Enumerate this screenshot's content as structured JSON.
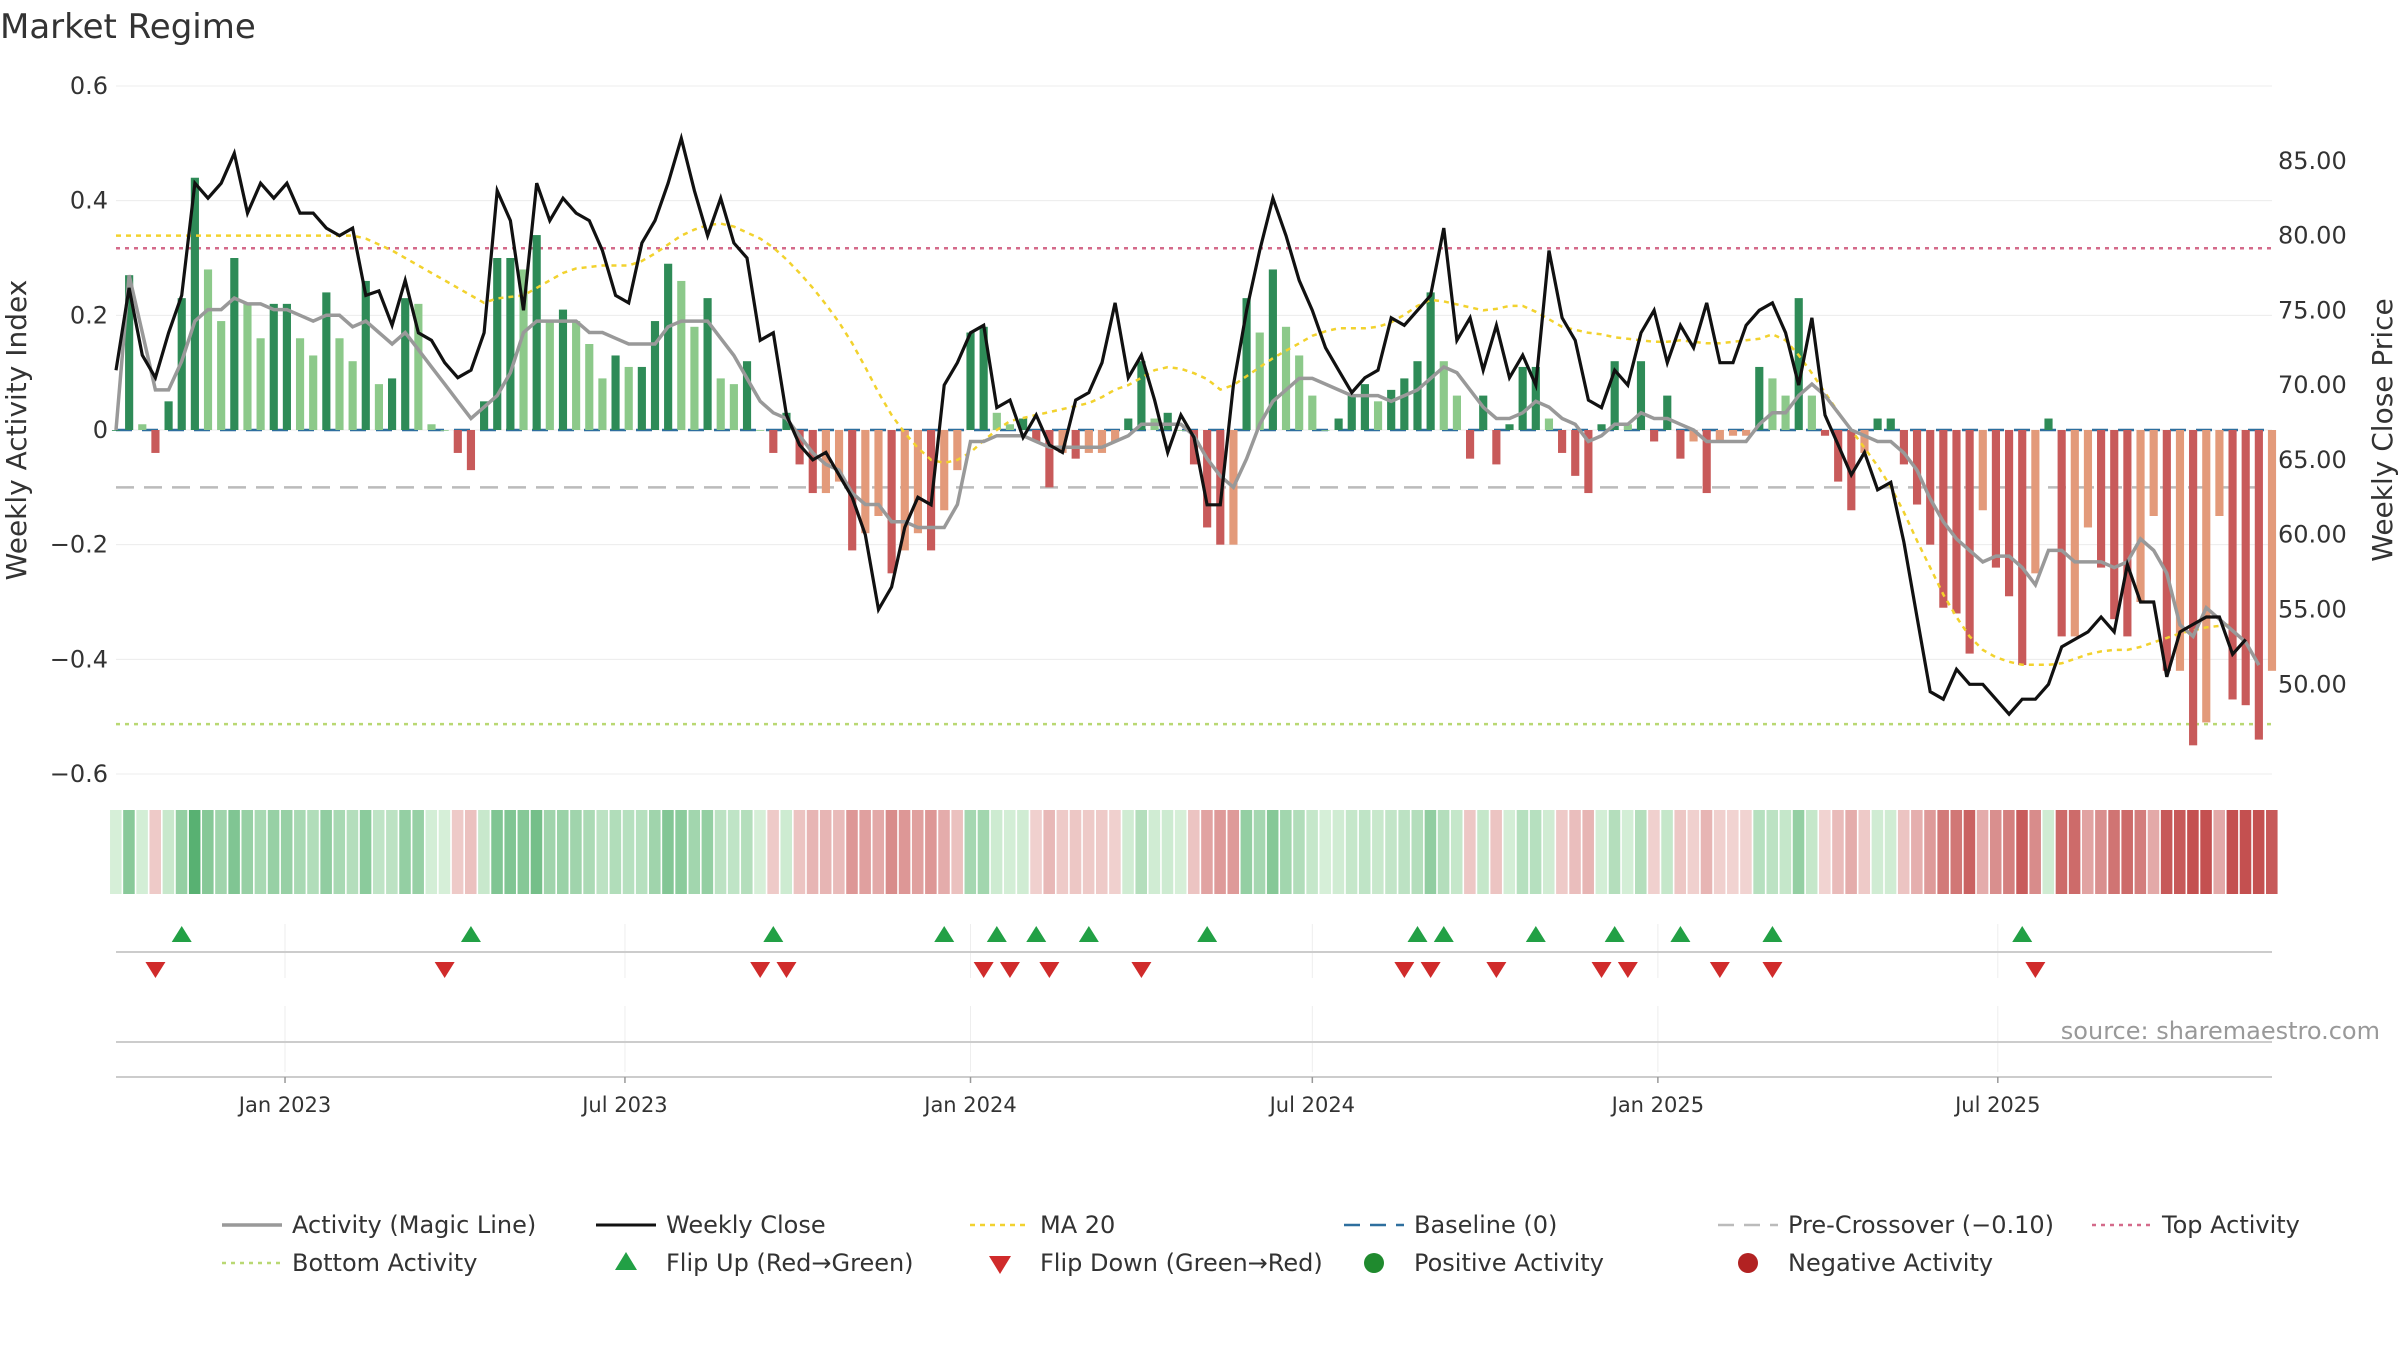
{
  "title": "Market Regime",
  "source_text": "source: sharemaestro.com",
  "colors": {
    "magic_line": "#999999",
    "close": "#111111",
    "ma": "#f2d22e",
    "baseline": "#2e6f9e",
    "pre_crossover": "#bbbbbb",
    "top": "#d46a8a",
    "bottom": "#b9d873",
    "green_dark": "#2e8b57",
    "green_light": "#8cc98a",
    "red_dark": "#c85a5a",
    "red_light": "#e39a7a",
    "flip_up": "#22a045",
    "flip_down": "#d02b2b",
    "pos_dot": "#1f8a2e",
    "neg_dot": "#b22222"
  },
  "chart_data": {
    "type": "bar",
    "title": "Market Regime",
    "ylabel_left": "Weekly Activity Index",
    "ylabel_right": "Weekly Close Price",
    "ylim_left": [
      -0.6,
      0.6
    ],
    "ylim_right": [
      44,
      90
    ],
    "yticks_left": [
      {
        "v": 0.6,
        "label": "0.6"
      },
      {
        "v": 0.4,
        "label": "0.4"
      },
      {
        "v": 0.2,
        "label": "0.2"
      },
      {
        "v": 0,
        "label": "0"
      },
      {
        "v": -0.2,
        "label": "−0.2"
      },
      {
        "v": -0.4,
        "label": "−0.4"
      },
      {
        "v": -0.6,
        "label": "−0.6"
      }
    ],
    "yticks_right": [
      {
        "v": 85,
        "label": "85.00"
      },
      {
        "v": 80,
        "label": "80.00"
      },
      {
        "v": 75,
        "label": "75.00"
      },
      {
        "v": 70,
        "label": "70.00"
      },
      {
        "v": 65,
        "label": "65.00"
      },
      {
        "v": 60,
        "label": "60.00"
      },
      {
        "v": 55,
        "label": "55.00"
      },
      {
        "v": 50,
        "label": "50.00"
      }
    ],
    "x_start": "2022-10-03",
    "x_step_days": 7,
    "xticks": [
      {
        "date": "2023-01-01",
        "label": "Jan 2023"
      },
      {
        "date": "2023-07-01",
        "label": "Jul 2023"
      },
      {
        "date": "2024-01-01",
        "label": "Jan 2024"
      },
      {
        "date": "2024-07-01",
        "label": "Jul 2024"
      },
      {
        "date": "2025-01-01",
        "label": "Jan 2025"
      },
      {
        "date": "2025-07-01",
        "label": "Jul 2025"
      }
    ],
    "baseline": 0,
    "pre_crossover": -0.1,
    "top_activity": 0.317,
    "bottom_activity": -0.513,
    "activity": [
      0.0,
      0.27,
      0.01,
      -0.04,
      0.05,
      0.23,
      0.44,
      0.28,
      0.19,
      0.3,
      0.22,
      0.16,
      0.22,
      0.22,
      0.16,
      0.13,
      0.24,
      0.16,
      0.12,
      0.26,
      0.08,
      0.09,
      0.23,
      0.22,
      0.01,
      0.0,
      -0.04,
      -0.07,
      0.05,
      0.3,
      0.3,
      0.28,
      0.34,
      0.19,
      0.21,
      0.19,
      0.15,
      0.09,
      0.13,
      0.11,
      0.11,
      0.19,
      0.29,
      0.26,
      0.18,
      0.23,
      0.09,
      0.08,
      0.12,
      0.0,
      -0.04,
      0.03,
      -0.06,
      -0.11,
      -0.11,
      -0.09,
      -0.21,
      -0.18,
      -0.15,
      -0.25,
      -0.21,
      -0.18,
      -0.21,
      -0.14,
      -0.07,
      0.17,
      0.18,
      0.03,
      0.01,
      0.02,
      -0.02,
      -0.1,
      -0.04,
      -0.05,
      -0.04,
      -0.04,
      -0.02,
      0.02,
      0.12,
      0.02,
      0.03,
      0.0,
      -0.06,
      -0.17,
      -0.2,
      -0.2,
      0.23,
      0.17,
      0.28,
      0.18,
      0.13,
      0.06,
      0.0,
      0.02,
      0.06,
      0.08,
      0.05,
      0.07,
      0.09,
      0.12,
      0.24,
      0.12,
      0.06,
      -0.05,
      0.06,
      -0.06,
      0.01,
      0.11,
      0.11,
      0.02,
      -0.04,
      -0.08,
      -0.11,
      0.01,
      0.12,
      0.01,
      0.12,
      -0.02,
      0.06,
      -0.05,
      -0.02,
      -0.11,
      -0.02,
      -0.01,
      -0.01,
      0.11,
      0.09,
      0.06,
      0.23,
      0.06,
      -0.01,
      -0.09,
      -0.14,
      -0.04,
      0.02,
      0.02,
      -0.06,
      -0.13,
      -0.2,
      -0.31,
      -0.32,
      -0.39,
      -0.14,
      -0.24,
      -0.29,
      -0.41,
      -0.25,
      0.02,
      -0.36,
      -0.36,
      -0.17,
      -0.24,
      -0.33,
      -0.36,
      -0.3,
      -0.15,
      -0.42,
      -0.42,
      -0.55,
      -0.51,
      -0.15,
      -0.47,
      -0.48,
      -0.54,
      -0.42
    ],
    "magic_line": [
      0.0,
      0.27,
      0.17,
      0.07,
      0.07,
      0.12,
      0.19,
      0.21,
      0.21,
      0.23,
      0.22,
      0.22,
      0.21,
      0.21,
      0.2,
      0.19,
      0.2,
      0.2,
      0.18,
      0.19,
      0.17,
      0.15,
      0.17,
      0.14,
      0.11,
      0.08,
      0.05,
      0.02,
      0.04,
      0.06,
      0.1,
      0.17,
      0.19,
      0.19,
      0.19,
      0.19,
      0.17,
      0.17,
      0.16,
      0.15,
      0.15,
      0.15,
      0.18,
      0.19,
      0.19,
      0.19,
      0.16,
      0.13,
      0.09,
      0.05,
      0.03,
      0.02,
      -0.01,
      -0.04,
      -0.06,
      -0.07,
      -0.11,
      -0.13,
      -0.13,
      -0.16,
      -0.16,
      -0.17,
      -0.17,
      -0.17,
      -0.13,
      -0.02,
      -0.02,
      -0.01,
      -0.01,
      -0.01,
      -0.02,
      -0.03,
      -0.03,
      -0.03,
      -0.03,
      -0.03,
      -0.02,
      -0.01,
      0.01,
      0.01,
      0.01,
      0.01,
      -0.01,
      -0.05,
      -0.08,
      -0.1,
      -0.05,
      0.01,
      0.05,
      0.07,
      0.09,
      0.09,
      0.08,
      0.07,
      0.06,
      0.06,
      0.06,
      0.05,
      0.06,
      0.07,
      0.09,
      0.11,
      0.1,
      0.07,
      0.04,
      0.02,
      0.02,
      0.03,
      0.05,
      0.04,
      0.02,
      0.01,
      -0.02,
      -0.01,
      0.01,
      0.01,
      0.03,
      0.02,
      0.02,
      0.01,
      0.0,
      -0.02,
      -0.02,
      -0.02,
      -0.02,
      0.01,
      0.03,
      0.03,
      0.06,
      0.08,
      0.06,
      0.03,
      0.0,
      -0.01,
      -0.02,
      -0.02,
      -0.04,
      -0.07,
      -0.12,
      -0.16,
      -0.19,
      -0.21,
      -0.23,
      -0.22,
      -0.22,
      -0.24,
      -0.27,
      -0.21,
      -0.21,
      -0.23,
      -0.23,
      -0.23,
      -0.24,
      -0.23,
      -0.19,
      -0.21,
      -0.25,
      -0.34,
      -0.36,
      -0.31,
      -0.33,
      -0.35,
      -0.37,
      -0.41
    ],
    "close": [
      71.0,
      76.5,
      72.0,
      70.5,
      73.5,
      76.0,
      83.5,
      82.5,
      83.5,
      85.5,
      81.5,
      83.5,
      82.5,
      83.5,
      81.5,
      81.5,
      80.5,
      80.0,
      80.5,
      76.0,
      76.3,
      74.0,
      77.0,
      73.5,
      73.0,
      71.5,
      70.5,
      71.0,
      73.5,
      83.0,
      81.0,
      75.0,
      83.5,
      81.0,
      82.5,
      81.5,
      81.0,
      79.0,
      76.0,
      75.5,
      79.5,
      81.0,
      83.5,
      86.5,
      83.0,
      80.0,
      82.5,
      79.5,
      78.5,
      73.0,
      73.5,
      68.0,
      66.0,
      65.0,
      65.5,
      64.0,
      62.5,
      60.0,
      55.0,
      56.5,
      60.5,
      62.5,
      62.0,
      70.0,
      71.5,
      73.5,
      74.0,
      68.5,
      69.0,
      66.5,
      68.0,
      66.0,
      65.5,
      69.0,
      69.5,
      71.5,
      75.5,
      70.5,
      72.0,
      69.0,
      65.5,
      68.0,
      66.5,
      62.0,
      62.0,
      70.0,
      75.0,
      79.0,
      82.5,
      80.0,
      77.0,
      75.0,
      72.5,
      71.0,
      69.5,
      70.5,
      71.0,
      74.5,
      74.0,
      75.0,
      76.0,
      80.5,
      73.0,
      74.5,
      71.0,
      74.0,
      70.5,
      72.0,
      70.0,
      79.0,
      74.5,
      73.0,
      69.0,
      68.5,
      71.0,
      70.0,
      73.5,
      75.0,
      71.5,
      74.0,
      72.5,
      75.5,
      71.5,
      71.5,
      74.0,
      75.0,
      75.5,
      73.5,
      70.0,
      74.5,
      68.0,
      66.0,
      64.0,
      65.5,
      63.0,
      63.5,
      59.5,
      54.5,
      49.5,
      49.0,
      51.0,
      50.0,
      50.0,
      49.0,
      48.0,
      49.0,
      49.0,
      50.0,
      52.5,
      53.0,
      53.5,
      54.5,
      53.5,
      58.0,
      55.5,
      55.5,
      50.5,
      53.5,
      54.0,
      54.5,
      54.5,
      52.0,
      53.0
    ],
    "ma20": [
      80.0,
      80.0,
      80.0,
      80.0,
      80.0,
      80.0,
      80.0,
      80.0,
      80.0,
      80.0,
      80.0,
      80.0,
      80.0,
      80.0,
      80.0,
      80.0,
      80.0,
      80.0,
      80.0,
      79.8,
      79.4,
      79.0,
      78.5,
      78.0,
      77.5,
      77.0,
      76.5,
      76.0,
      75.5,
      75.8,
      75.9,
      76.0,
      76.5,
      77.0,
      77.5,
      77.8,
      77.9,
      78.0,
      78.0,
      78.0,
      78.3,
      78.8,
      79.4,
      80.0,
      80.4,
      80.7,
      80.8,
      80.6,
      80.2,
      79.8,
      79.2,
      78.4,
      77.5,
      76.5,
      75.4,
      74.2,
      72.8,
      71.2,
      69.5,
      68.0,
      66.8,
      65.8,
      65.0,
      64.8,
      65.0,
      65.5,
      66.3,
      67.0,
      67.6,
      67.8,
      68.0,
      68.2,
      68.4,
      68.6,
      68.8,
      69.2,
      69.7,
      70.0,
      70.5,
      71.0,
      71.2,
      71.1,
      70.8,
      70.4,
      69.7,
      70.0,
      70.6,
      71.2,
      71.8,
      72.3,
      72.8,
      73.3,
      73.6,
      73.8,
      73.8,
      73.8,
      73.9,
      74.2,
      74.7,
      75.3,
      75.7,
      75.6,
      75.4,
      75.2,
      75.0,
      75.1,
      75.3,
      75.3,
      74.9,
      74.4,
      73.9,
      73.7,
      73.5,
      73.4,
      73.2,
      73.1,
      73.0,
      72.9,
      72.9,
      73.0,
      72.9,
      72.8,
      72.8,
      72.9,
      73.0,
      73.1,
      73.4,
      73.0,
      72.0,
      70.8,
      69.5,
      68.2,
      67.0,
      65.8,
      64.6,
      63.2,
      61.5,
      59.6,
      57.8,
      56.0,
      54.5,
      53.2,
      52.3,
      51.8,
      51.5,
      51.3,
      51.3,
      51.3,
      51.4,
      51.7,
      52.0,
      52.2,
      52.3,
      52.3,
      52.5,
      52.8,
      53.1,
      53.4,
      53.6,
      53.8,
      53.9,
      54.0
    ],
    "flip_up": [
      5,
      27,
      50,
      63,
      67,
      70,
      74,
      83,
      99,
      101,
      108,
      114,
      119,
      126,
      145
    ],
    "flip_down": [
      3,
      25,
      49,
      51,
      66,
      68,
      71,
      78,
      98,
      100,
      105,
      113,
      115,
      122,
      126,
      146
    ],
    "legend": [
      {
        "key": "magic",
        "label": "Activity (Magic Line)"
      },
      {
        "key": "close",
        "label": "Weekly Close"
      },
      {
        "key": "ma",
        "label": "MA 20"
      },
      {
        "key": "baseline",
        "label": "Baseline (0)"
      },
      {
        "key": "pre",
        "label": "Pre-Crossover (−0.10)"
      },
      {
        "key": "top",
        "label": "Top Activity"
      },
      {
        "key": "bottom",
        "label": "Bottom Activity"
      },
      {
        "key": "flipup",
        "label": "Flip Up (Red→Green)"
      },
      {
        "key": "flipdown",
        "label": "Flip Down (Green→Red)"
      },
      {
        "key": "pos",
        "label": "Positive Activity"
      },
      {
        "key": "neg",
        "label": "Negative Activity"
      }
    ],
    "legend_placement": "bottom"
  }
}
